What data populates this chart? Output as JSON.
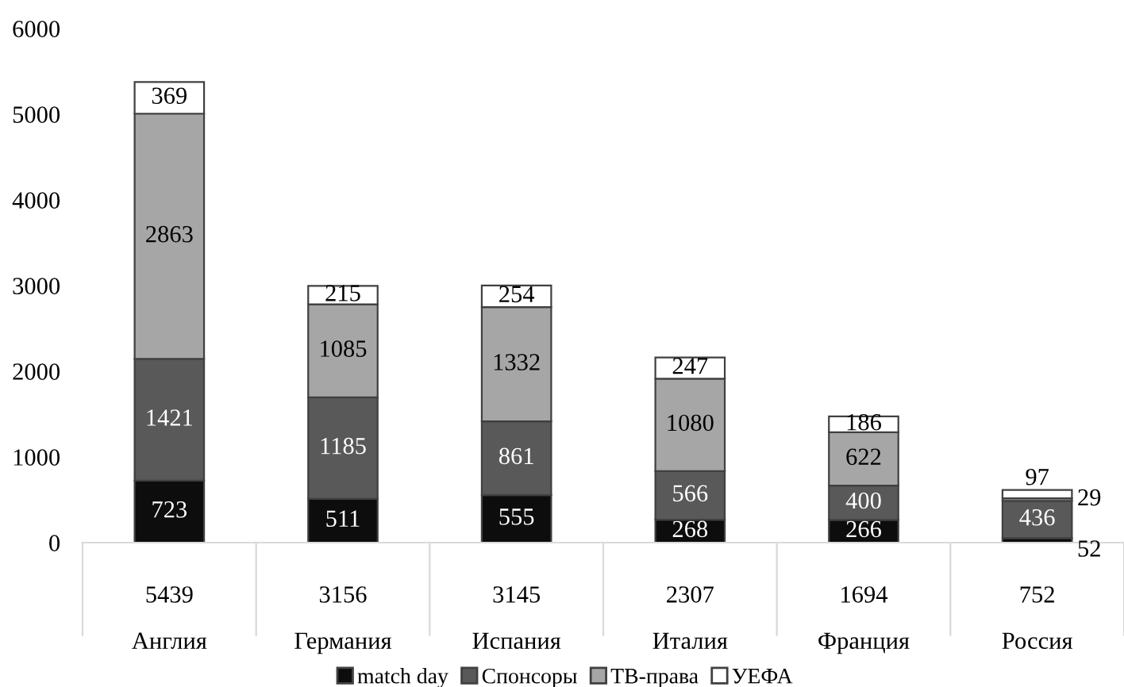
{
  "chart_data": {
    "type": "bar",
    "stacked": true,
    "categories": [
      "Англия",
      "Германия",
      "Испания",
      "Италия",
      "Франция",
      "Россия"
    ],
    "series": [
      {
        "name": "match day",
        "color": "#0d0d0d",
        "values": [
          723,
          511,
          555,
          268,
          266,
          52
        ]
      },
      {
        "name": "Спонсоры",
        "color": "#595959",
        "values": [
          1421,
          1185,
          861,
          566,
          400,
          436
        ]
      },
      {
        "name": "ТВ-права",
        "color": "#a6a6a6",
        "values": [
          2863,
          1085,
          1332,
          1080,
          622,
          29
        ]
      },
      {
        "name": "УЕФА",
        "color": "#ffffff",
        "values": [
          369,
          215,
          254,
          247,
          186,
          97
        ]
      }
    ],
    "annotations": [
      "5439",
      "3156",
      "3145",
      "2307",
      "1694",
      "752"
    ],
    "ylim": [
      0,
      6000
    ],
    "yticks": [
      0,
      1000,
      2000,
      3000,
      4000,
      5000,
      6000
    ],
    "grid": false,
    "data_labels": true,
    "legend": "bottom"
  }
}
